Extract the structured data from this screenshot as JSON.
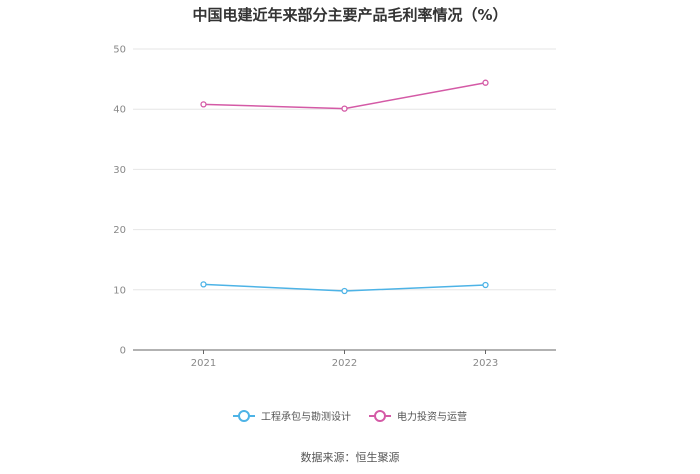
{
  "chart_data": {
    "type": "line",
    "title": "中国电建近年来部分主要产品毛利率情况（%）",
    "x": [
      "2021",
      "2022",
      "2023"
    ],
    "series": [
      {
        "name": "工程承包与勘测设计",
        "values": [
          10.9,
          9.8,
          10.8
        ],
        "color": "#4db3e6"
      },
      {
        "name": "电力投资与运营",
        "values": [
          40.8,
          40.1,
          44.4
        ],
        "color": "#d45aa6"
      }
    ],
    "ylim": [
      0,
      50
    ],
    "yticks": [
      "0",
      "10",
      "20",
      "30",
      "40",
      "50"
    ],
    "grid": true,
    "legend_position": "bottom-center"
  },
  "source": "数据来源：恒生聚源"
}
